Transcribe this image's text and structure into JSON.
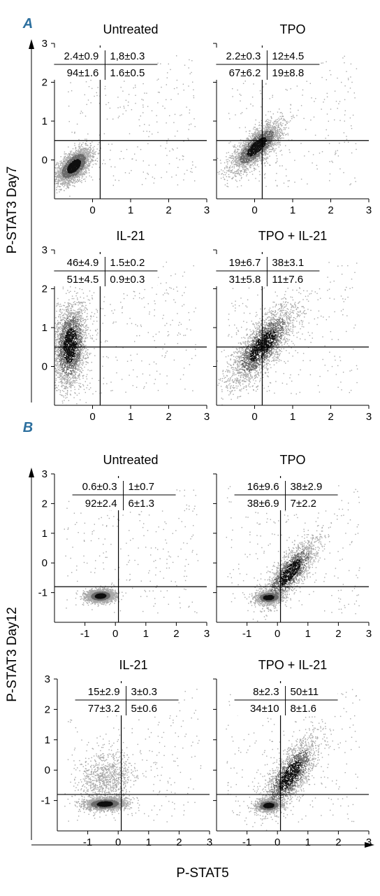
{
  "colors": {
    "axis": "#000000",
    "quadrant_lines": "#000000",
    "density_low": "#a8a8a8",
    "density_mid": "#6b6b6b",
    "density_high": "#101010",
    "panel_letter": "#2c6f9e"
  },
  "panel_A": {
    "letter": "A",
    "ylabel": "P-STAT3 Day7"
  },
  "panel_B": {
    "letter": "B",
    "ylabel": "P-STAT3 Day12"
  },
  "xlabel": "P-STAT5",
  "chart_data": [
    {
      "type": "scatter",
      "panel": "A",
      "title": "Untreated",
      "xlim": [
        -1.0,
        3.0
      ],
      "ylim": [
        -1.0,
        3.0
      ],
      "xticks": [
        "0",
        "1",
        "2",
        "3"
      ],
      "yticks": [
        "0",
        "1",
        "2",
        "3"
      ],
      "gate": {
        "x": 0.2,
        "y": 0.5
      },
      "quadrants": {
        "ul": "2.4±0.9",
        "ur": "1,8±0.3",
        "ll": "94±1.6",
        "lr": "1.6±0.5"
      },
      "populations": [
        {
          "cx": -0.5,
          "cy": -0.15,
          "sx": 0.22,
          "sy": 0.22,
          "rho": 0.55,
          "n": 2600,
          "weight": 1.0
        }
      ]
    },
    {
      "type": "scatter",
      "panel": "A",
      "title": "TPO",
      "xlim": [
        -1.0,
        3.0
      ],
      "ylim": [
        -1.0,
        3.0
      ],
      "xticks": [
        "0",
        "1",
        "2",
        "3"
      ],
      "yticks": [],
      "gate": {
        "x": 0.2,
        "y": 0.5
      },
      "quadrants": {
        "ul": "2.2±0.3",
        "ur": "12±4.5",
        "ll": "67±6.2",
        "lr": "19±8.8"
      },
      "populations": [
        {
          "cx": 0.05,
          "cy": 0.35,
          "sx": 0.32,
          "sy": 0.3,
          "rho": 0.75,
          "n": 2600,
          "weight": 1.0
        }
      ]
    },
    {
      "type": "scatter",
      "panel": "A",
      "title": "IL-21",
      "xlim": [
        -1.0,
        3.0
      ],
      "ylim": [
        -1.0,
        3.0
      ],
      "xticks": [
        "0",
        "1",
        "2",
        "3"
      ],
      "yticks": [
        "0",
        "1",
        "2",
        "3"
      ],
      "gate": {
        "x": 0.2,
        "y": 0.5
      },
      "quadrants": {
        "ul": "46±4.9",
        "ur": "1.5±0.2",
        "ll": "51±4.5",
        "lr": "0.9±0.3"
      },
      "populations": [
        {
          "cx": -0.6,
          "cy": 0.55,
          "sx": 0.22,
          "sy": 0.55,
          "rho": 0.2,
          "n": 2600,
          "weight": 1.0
        }
      ]
    },
    {
      "type": "scatter",
      "panel": "A",
      "title": "TPO + IL-21",
      "xlim": [
        -1.0,
        3.0
      ],
      "ylim": [
        -1.0,
        3.0
      ],
      "xticks": [
        "0",
        "1",
        "2",
        "3"
      ],
      "yticks": [],
      "gate": {
        "x": 0.2,
        "y": 0.5
      },
      "quadrants": {
        "ul": "19±6.7",
        "ur": "38±3.1",
        "ll": "31±5.8",
        "lr": "11±7.6"
      },
      "populations": [
        {
          "cx": 0.2,
          "cy": 0.55,
          "sx": 0.42,
          "sy": 0.5,
          "rho": 0.75,
          "n": 2600,
          "weight": 1.0
        }
      ]
    },
    {
      "type": "scatter",
      "panel": "B",
      "title": "Untreated",
      "xlim": [
        -2.0,
        3.0
      ],
      "ylim": [
        -2.0,
        3.0
      ],
      "xticks": [
        "-1",
        "0",
        "1",
        "2",
        "3"
      ],
      "yticks": [
        "-1",
        "0",
        "1",
        "2",
        "3"
      ],
      "gate": {
        "x": 0.1,
        "y": -0.8
      },
      "quadrants": {
        "ul": "0.6±0.3",
        "ur": "1±0.7",
        "ll": "92±2.4",
        "lr": "6±1.3"
      },
      "populations": [
        {
          "cx": -0.5,
          "cy": -1.1,
          "sx": 0.22,
          "sy": 0.1,
          "rho": 0.1,
          "n": 2600,
          "weight": 1.0
        }
      ]
    },
    {
      "type": "scatter",
      "panel": "B",
      "title": "TPO",
      "xlim": [
        -2.0,
        3.0
      ],
      "ylim": [
        -2.0,
        3.0
      ],
      "xticks": [
        "-1",
        "0",
        "1",
        "2",
        "3"
      ],
      "yticks": [],
      "gate": {
        "x": 0.1,
        "y": -0.8
      },
      "quadrants": {
        "ul": "16±9.6",
        "ur": "38±2.9",
        "ll": "38±6.9",
        "lr": "7±2.2"
      },
      "populations": [
        {
          "cx": -0.3,
          "cy": -1.15,
          "sx": 0.22,
          "sy": 0.1,
          "rho": 0.1,
          "n": 1200,
          "weight": 1.0
        },
        {
          "cx": 0.4,
          "cy": -0.3,
          "sx": 0.45,
          "sy": 0.55,
          "rho": 0.8,
          "n": 1800,
          "weight": 1.0
        }
      ]
    },
    {
      "type": "scatter",
      "panel": "B",
      "title": "IL-21",
      "xlim": [
        -2.0,
        3.0
      ],
      "ylim": [
        -2.0,
        3.0
      ],
      "xticks": [
        "-1",
        "0",
        "1",
        "2",
        "3"
      ],
      "yticks": [
        "-1",
        "0",
        "1",
        "2",
        "3"
      ],
      "gate": {
        "x": 0.1,
        "y": -0.8
      },
      "quadrants": {
        "ul": "15±2.9",
        "ur": "3±0.3",
        "ll": "77±3.2",
        "lr": "5±0.6"
      },
      "populations": [
        {
          "cx": -0.45,
          "cy": -1.1,
          "sx": 0.32,
          "sy": 0.1,
          "rho": 0.1,
          "n": 2200,
          "weight": 1.0
        },
        {
          "cx": -0.4,
          "cy": -0.3,
          "sx": 0.42,
          "sy": 0.45,
          "rho": 0.1,
          "n": 900,
          "weight": 0.6
        }
      ]
    },
    {
      "type": "scatter",
      "panel": "B",
      "title": "TPO + IL-21",
      "xlim": [
        -2.0,
        3.0
      ],
      "ylim": [
        -2.0,
        3.0
      ],
      "xticks": [
        "-1",
        "0",
        "1",
        "2",
        "3"
      ],
      "yticks": [],
      "gate": {
        "x": 0.1,
        "y": -0.8
      },
      "quadrants": {
        "ul": "8±2.3",
        "ur": "50±11",
        "ll": "34±10",
        "lr": "8±1.6"
      },
      "populations": [
        {
          "cx": -0.3,
          "cy": -1.15,
          "sx": 0.22,
          "sy": 0.1,
          "rho": 0.1,
          "n": 1100,
          "weight": 1.0
        },
        {
          "cx": 0.4,
          "cy": -0.15,
          "sx": 0.45,
          "sy": 0.6,
          "rho": 0.75,
          "n": 2000,
          "weight": 1.0
        }
      ]
    }
  ]
}
